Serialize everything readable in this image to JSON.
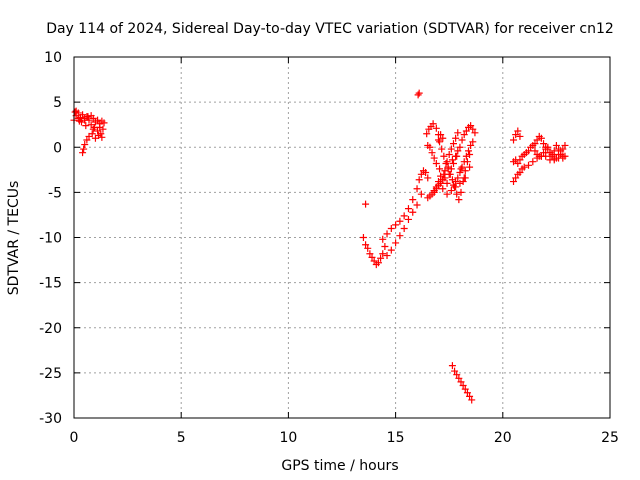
{
  "chart_data": {
    "type": "scatter",
    "title": "Day 114 of 2024, Sidereal Day-to-day VTEC variation (SDTVAR) for receiver cn12",
    "xlabel": "GPS time / hours",
    "ylabel": "SDTVAR / TECUs",
    "xlim": [
      0,
      25
    ],
    "ylim": [
      -30,
      10
    ],
    "x_ticks": [
      0,
      5,
      10,
      15,
      20,
      25
    ],
    "y_ticks": [
      -30,
      -25,
      -20,
      -15,
      -10,
      -5,
      0,
      5,
      10
    ],
    "x_tick_labels": [
      "0",
      "5",
      "10",
      "15",
      "20",
      "25"
    ],
    "y_tick_labels": [
      "-30",
      "-25",
      "-20",
      "-15",
      "-10",
      "-5",
      "0",
      "5",
      "10"
    ],
    "grid": true,
    "marker": "plus",
    "color": "#ff0000",
    "series": [
      {
        "x": [
          0.0,
          0.1,
          0.2,
          0.3,
          0.4,
          0.5,
          0.6,
          0.7,
          0.8,
          0.9,
          1.0,
          1.1,
          1.2,
          1.3,
          1.4,
          0.05,
          0.2,
          0.35,
          0.5,
          0.65,
          0.8,
          0.95,
          1.1,
          1.25,
          1.35,
          0.4,
          0.45,
          0.5,
          0.6,
          0.7,
          0.85,
          1.0,
          1.15,
          1.3,
          0.1,
          0.25,
          0.55,
          0.9,
          1.2
        ],
        "y": [
          3.0,
          3.5,
          3.8,
          3.3,
          3.6,
          3.2,
          3.4,
          3.0,
          3.5,
          3.2,
          2.8,
          3.0,
          2.6,
          2.9,
          2.7,
          3.9,
          3.2,
          2.8,
          3.0,
          3.4,
          2.5,
          2.2,
          1.8,
          1.5,
          2.0,
          -0.6,
          -0.2,
          0.3,
          0.8,
          1.2,
          1.5,
          1.0,
          1.3,
          1.1,
          4.0,
          2.9,
          2.4,
          2.0,
          2.2
        ]
      },
      {
        "x": [
          16.05,
          16.1,
          13.6,
          13.5,
          13.6,
          13.7,
          13.8,
          13.9,
          14.0,
          14.1,
          14.2,
          14.3,
          14.4,
          14.5,
          14.4,
          14.6,
          14.8,
          15.0,
          15.2,
          15.4,
          15.6,
          15.8,
          16.0,
          16.1,
          16.2,
          16.3,
          16.4,
          16.5,
          14.6,
          14.8,
          15.0,
          15.2,
          15.4,
          15.6,
          15.8,
          16.0,
          16.2,
          16.5,
          16.6,
          16.7,
          16.8,
          16.9,
          17.0,
          17.1,
          17.2,
          17.3,
          17.4,
          17.5,
          17.6,
          17.7,
          17.8,
          17.9,
          16.8,
          16.9,
          17.0,
          17.1,
          17.2,
          17.3,
          17.4,
          17.5,
          17.6,
          17.7,
          17.8,
          17.9,
          18.0,
          18.1,
          18.2,
          18.3,
          18.4,
          18.5,
          18.6,
          18.7,
          17.7,
          17.8,
          17.9,
          18.0,
          18.1,
          18.2,
          18.3,
          18.4,
          18.5,
          18.6,
          17.0,
          17.1,
          17.2,
          17.65,
          17.75,
          17.85,
          17.95,
          18.05,
          18.15,
          18.25,
          18.35,
          18.45,
          18.55
        ],
        "y": [
          5.8,
          6.0,
          -6.3,
          -10.0,
          -10.8,
          -11.2,
          -11.8,
          -12.2,
          -12.6,
          -13.0,
          -12.8,
          -12.3,
          -11.8,
          -11.0,
          -10.2,
          -9.6,
          -9.0,
          -8.6,
          -8.2,
          -7.6,
          -6.8,
          -5.8,
          -4.6,
          -3.6,
          -3.0,
          -2.6,
          -2.8,
          -3.4,
          -12.0,
          -11.4,
          -10.6,
          -9.8,
          -9.0,
          -8.0,
          -7.2,
          -6.4,
          -5.2,
          -5.6,
          -5.4,
          -5.2,
          -4.8,
          -4.4,
          -3.8,
          -3.2,
          -3.6,
          -2.6,
          -1.6,
          -0.8,
          -0.2,
          0.4,
          1.0,
          1.6,
          -5.0,
          -4.6,
          -4.2,
          -4.0,
          -3.6,
          -3.4,
          -4.0,
          -3.0,
          -2.4,
          -1.8,
          -1.0,
          -0.4,
          0.0,
          0.8,
          1.4,
          1.8,
          2.2,
          2.4,
          2.0,
          1.6,
          -4.2,
          -3.8,
          -3.4,
          -2.8,
          -2.2,
          -1.6,
          -1.0,
          -0.4,
          0.2,
          0.6,
          0.8,
          1.4,
          1.0,
          -24.2,
          -24.8,
          -25.2,
          -25.6,
          -26.0,
          -26.4,
          -26.8,
          -27.2,
          -27.6,
          -28.0
        ]
      },
      {
        "x": [
          16.45,
          16.55,
          16.65,
          16.75,
          16.9,
          17.0,
          17.05,
          17.15,
          17.25,
          17.35,
          17.45,
          17.55,
          17.65,
          17.75,
          17.85,
          17.95,
          18.05,
          18.15,
          18.25,
          18.35,
          18.45,
          16.5,
          16.6,
          16.7,
          16.8,
          16.9,
          17.05,
          17.25,
          17.45,
          17.65,
          17.85,
          18.05,
          18.25,
          18.45,
          16.8,
          17.0,
          17.2,
          17.4,
          17.6,
          17.8,
          18.0,
          18.2
        ],
        "y": [
          1.5,
          2.0,
          2.3,
          2.6,
          2.1,
          1.4,
          0.6,
          -0.2,
          -1.0,
          -1.8,
          -2.4,
          -3.0,
          -3.6,
          -4.4,
          -5.2,
          -5.8,
          -5.0,
          -3.8,
          -2.6,
          -1.6,
          -0.8,
          0.2,
          0.0,
          -0.6,
          -1.2,
          -1.8,
          -2.4,
          -3.0,
          -2.2,
          -1.4,
          -1.0,
          -2.4,
          -3.4,
          -2.2,
          -4.8,
          -4.2,
          -4.6,
          -5.2,
          -4.8,
          -4.4,
          -4.0,
          -3.4
        ]
      },
      {
        "x": [
          20.5,
          20.6,
          20.7,
          20.8,
          20.5,
          20.6,
          20.7,
          20.8,
          20.9,
          21.0,
          21.1,
          21.2,
          21.3,
          21.4,
          21.5,
          21.6,
          21.7,
          21.8,
          21.9,
          22.0,
          22.1,
          22.2,
          22.3,
          22.4,
          22.5,
          22.6,
          22.7,
          22.8,
          22.9,
          20.5,
          20.6,
          20.7,
          20.8,
          20.9,
          21.0,
          21.2,
          21.4,
          21.6,
          21.8,
          22.0,
          22.2,
          22.4,
          22.6,
          22.8,
          21.5,
          21.6,
          21.7,
          21.8,
          21.9,
          22.0,
          22.1,
          22.2,
          22.3,
          22.4,
          22.5,
          22.6,
          22.7,
          22.8,
          22.9
        ],
        "y": [
          0.8,
          1.4,
          1.8,
          1.2,
          -1.6,
          -1.4,
          -1.8,
          -1.4,
          -1.0,
          -0.8,
          -0.6,
          -0.4,
          0.0,
          0.2,
          0.4,
          0.8,
          1.2,
          1.0,
          0.4,
          0.0,
          -0.2,
          -0.6,
          -1.0,
          -1.2,
          -1.2,
          -0.8,
          -0.4,
          -0.2,
          0.2,
          -3.8,
          -3.4,
          -3.0,
          -2.8,
          -2.4,
          -2.2,
          -2.0,
          -1.6,
          -1.2,
          -1.0,
          -1.0,
          -1.4,
          -1.4,
          -1.2,
          -1.0,
          -0.4,
          -0.8,
          -1.0,
          -1.0,
          -0.6,
          -0.2,
          0.0,
          -0.6,
          -0.8,
          -0.4,
          0.2,
          -0.2,
          -0.8,
          -1.2,
          -1.0
        ]
      }
    ]
  }
}
